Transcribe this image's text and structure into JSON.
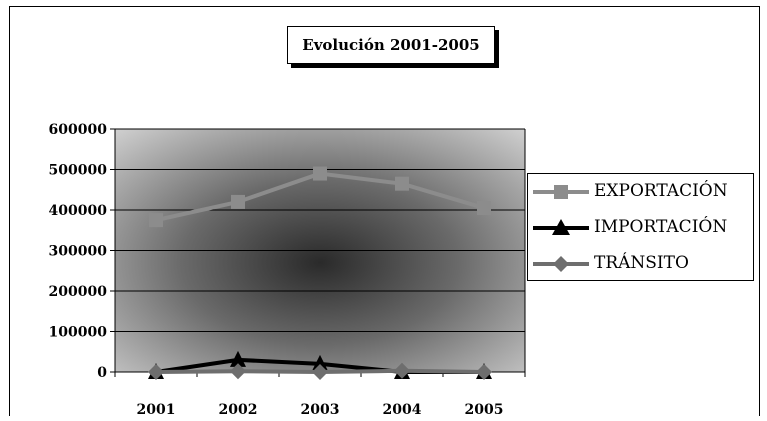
{
  "chart_data": {
    "type": "line",
    "title": "Evolución 2001-2005",
    "xlabel": "",
    "ylabel": "",
    "categories": [
      "2001",
      "2002",
      "2003",
      "2004",
      "2005"
    ],
    "ylim": [
      0,
      600000
    ],
    "yticks": [
      "0",
      "100000",
      "200000",
      "300000",
      "400000",
      "500000",
      "600000"
    ],
    "grid": true,
    "legend_position": "right",
    "series": [
      {
        "name": "EXPORTACIÓN",
        "values": [
          375000,
          420000,
          490000,
          465000,
          405000
        ],
        "color": "#8c8c8c",
        "marker": "square"
      },
      {
        "name": "IMPORTACIÓN",
        "values": [
          0,
          30000,
          20000,
          0,
          0
        ],
        "color": "#000000",
        "marker": "triangle"
      },
      {
        "name": "TRÁNSITO",
        "values": [
          0,
          2000,
          0,
          3000,
          0
        ],
        "color": "#6e6e6e",
        "marker": "diamond"
      }
    ]
  }
}
